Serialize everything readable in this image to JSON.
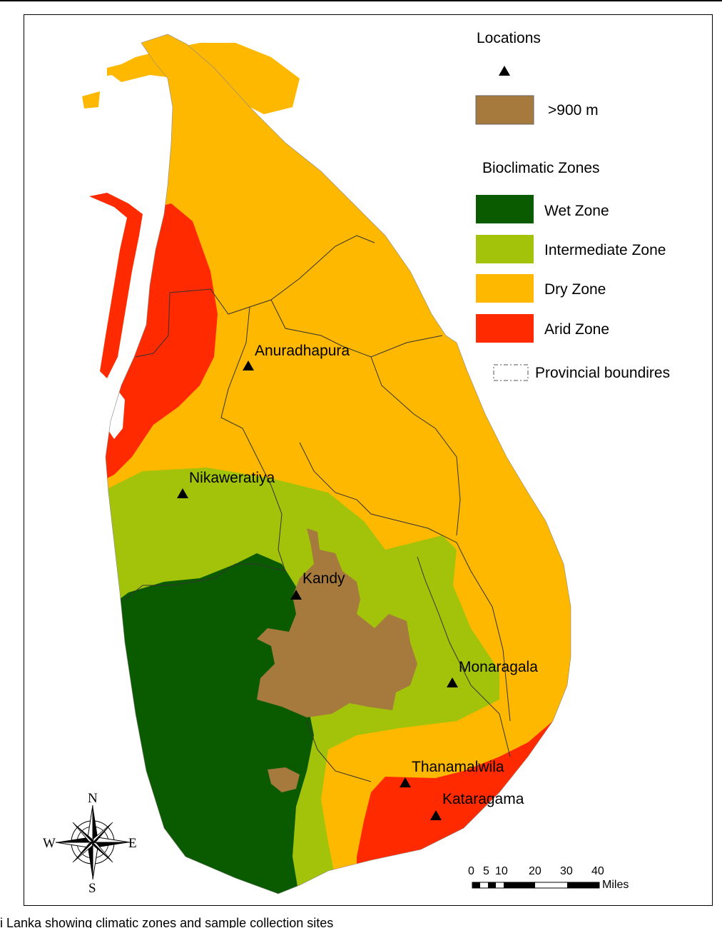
{
  "legend": {
    "locations_title": "Locations",
    "elevation_label": ">900 m",
    "zones_title": "Bioclimatic Zones",
    "zones": [
      {
        "label": "Wet Zone",
        "color": "#0a5a00"
      },
      {
        "label": "Intermediate Zone",
        "color": "#a3c30a"
      },
      {
        "label": "Dry Zone",
        "color": "#ffb800"
      },
      {
        "label": "Arid Zone",
        "color": "#ff2a00"
      }
    ],
    "boundary_label": "Provincial boundires",
    "elevation_color": "#a57a3c"
  },
  "sites": [
    {
      "name": "Anuradhapura"
    },
    {
      "name": "Nikaweratiya"
    },
    {
      "name": "Kandy"
    },
    {
      "name": "Monaragala"
    },
    {
      "name": "Thanamalwila"
    },
    {
      "name": "Kataragama"
    }
  ],
  "compass": {
    "n": "N",
    "s": "S",
    "e": "E",
    "w": "W"
  },
  "scale": {
    "ticks": [
      "0",
      "5",
      "10",
      "20",
      "30",
      "40"
    ],
    "unit": "Miles"
  },
  "caption": "i Lanka showing climatic zones and sample collection sites"
}
